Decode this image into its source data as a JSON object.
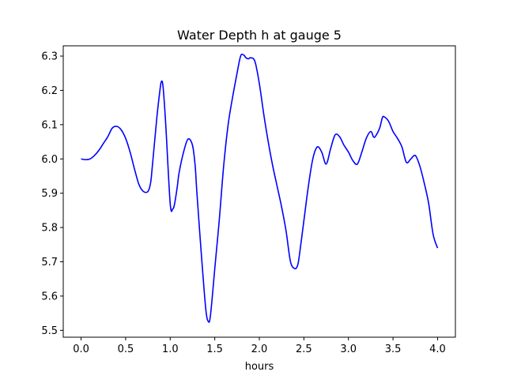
{
  "chart_data": {
    "type": "line",
    "title": "Water Depth h at gauge 5",
    "xlabel": "hours",
    "ylabel": "",
    "xlim": [
      -0.2,
      4.2
    ],
    "ylim": [
      5.48,
      6.33
    ],
    "xticks": [
      0.0,
      0.5,
      1.0,
      1.5,
      2.0,
      2.5,
      3.0,
      3.5,
      4.0
    ],
    "xtick_labels": [
      "0.0",
      "0.5",
      "1.0",
      "1.5",
      "2.0",
      "2.5",
      "3.0",
      "3.5",
      "4.0"
    ],
    "yticks": [
      5.5,
      5.6,
      5.7,
      5.8,
      5.9,
      6.0,
      6.1,
      6.2,
      6.3
    ],
    "ytick_labels": [
      "5.5",
      "5.6",
      "5.7",
      "5.8",
      "5.9",
      "6.0",
      "6.1",
      "6.2",
      "6.3"
    ],
    "grid": false,
    "series": [
      {
        "color": "#0000ff",
        "x": [
          0.0,
          0.05,
          0.1,
          0.15,
          0.2,
          0.25,
          0.3,
          0.35,
          0.4,
          0.45,
          0.5,
          0.55,
          0.6,
          0.65,
          0.7,
          0.75,
          0.78,
          0.8,
          0.85,
          0.88,
          0.9,
          0.92,
          0.95,
          1.0,
          1.03,
          1.05,
          1.08,
          1.1,
          1.15,
          1.2,
          1.25,
          1.28,
          1.3,
          1.35,
          1.4,
          1.43,
          1.45,
          1.48,
          1.5,
          1.55,
          1.6,
          1.65,
          1.7,
          1.75,
          1.78,
          1.8,
          1.83,
          1.85,
          1.88,
          1.9,
          1.95,
          2.0,
          2.05,
          2.1,
          2.15,
          2.2,
          2.25,
          2.3,
          2.35,
          2.4,
          2.43,
          2.45,
          2.5,
          2.55,
          2.6,
          2.65,
          2.7,
          2.75,
          2.8,
          2.85,
          2.9,
          2.95,
          3.0,
          3.05,
          3.1,
          3.15,
          3.2,
          3.25,
          3.28,
          3.3,
          3.35,
          3.38,
          3.4,
          3.45,
          3.5,
          3.55,
          3.6,
          3.65,
          3.7,
          3.75,
          3.8,
          3.85,
          3.9,
          3.95,
          4.0
        ],
        "y": [
          6.0,
          5.998,
          6.0,
          6.01,
          6.025,
          6.045,
          6.065,
          6.09,
          6.095,
          6.085,
          6.06,
          6.02,
          5.97,
          5.925,
          5.905,
          5.905,
          5.93,
          5.98,
          6.12,
          6.19,
          6.225,
          6.21,
          6.1,
          5.87,
          5.855,
          5.87,
          5.92,
          5.96,
          6.02,
          6.058,
          6.04,
          5.98,
          5.9,
          5.72,
          5.56,
          5.525,
          5.54,
          5.62,
          5.68,
          5.82,
          5.98,
          6.1,
          6.18,
          6.25,
          6.29,
          6.305,
          6.302,
          6.295,
          6.292,
          6.295,
          6.285,
          6.22,
          6.13,
          6.05,
          5.98,
          5.92,
          5.86,
          5.79,
          5.7,
          5.68,
          5.69,
          5.72,
          5.82,
          5.92,
          6.0,
          6.035,
          6.02,
          5.985,
          6.03,
          6.07,
          6.065,
          6.04,
          6.02,
          5.995,
          5.985,
          6.02,
          6.06,
          6.08,
          6.065,
          6.065,
          6.09,
          6.12,
          6.123,
          6.11,
          6.08,
          6.06,
          6.035,
          5.99,
          6.0,
          6.01,
          5.98,
          5.93,
          5.87,
          5.78,
          5.74
        ]
      }
    ]
  }
}
